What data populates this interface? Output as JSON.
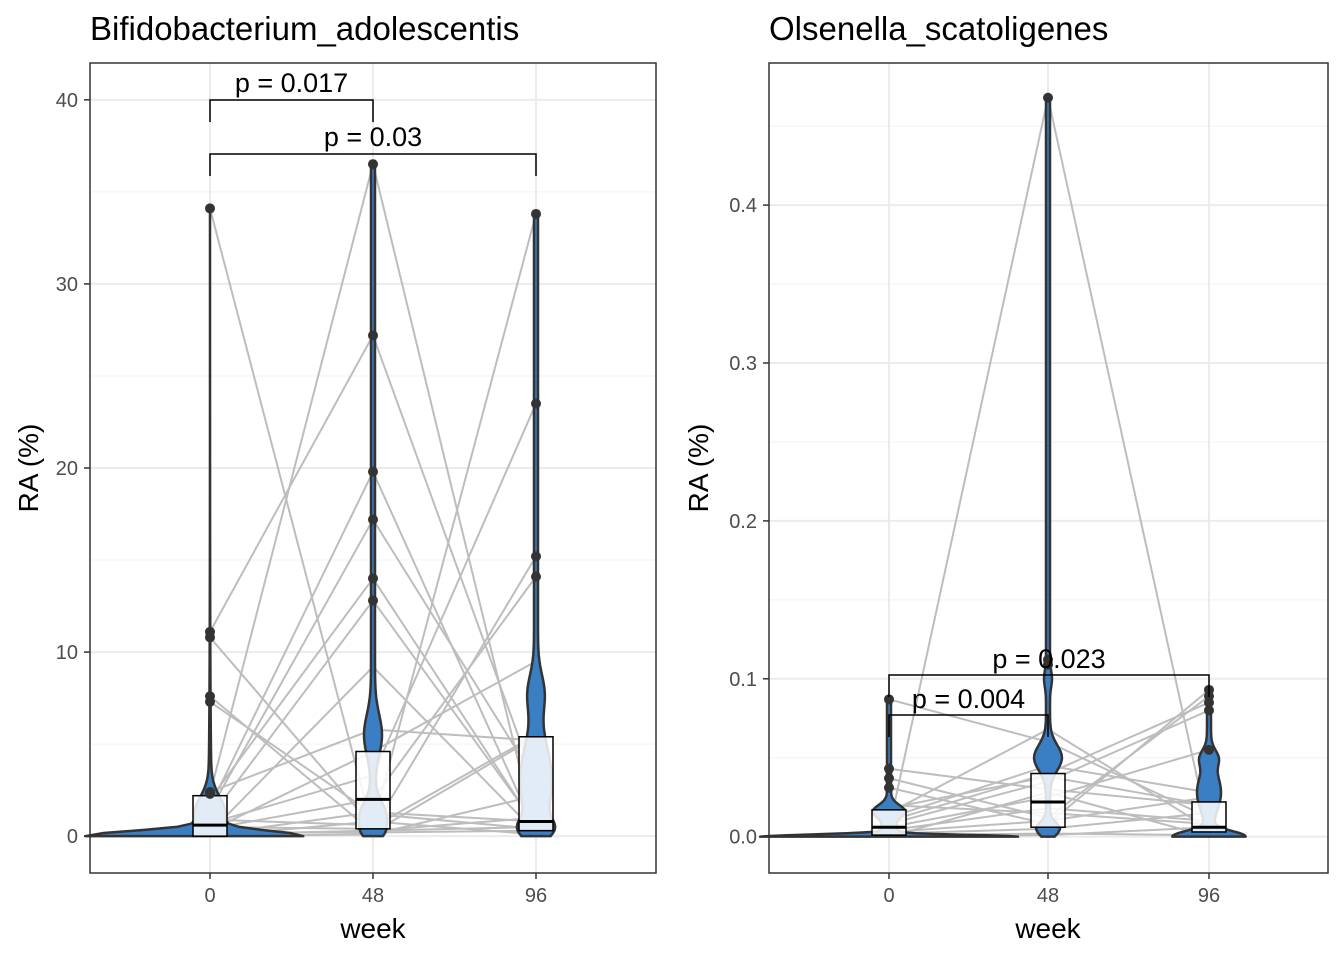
{
  "chart_data": [
    {
      "type": "violin",
      "title": "Bifidobacterium_adolescentis",
      "xlabel": "week",
      "ylabel": "RA (%)",
      "x_ticks": [
        "0",
        "48",
        "96"
      ],
      "y_ticks": [
        "0",
        "10",
        "20",
        "30",
        "40"
      ],
      "ylim": [
        -2,
        42
      ],
      "grid": true,
      "fill_color": "#3a7fc4",
      "line_color": "#bdbdbd",
      "outlier_points": {
        "0": [
          34.1,
          11.1,
          10.8,
          7.6,
          7.3,
          2.4,
          2.3
        ],
        "48": [
          36.5,
          27.2,
          19.8,
          17.2,
          14.0,
          12.8
        ],
        "96": [
          33.8,
          23.5,
          15.2,
          14.1
        ]
      },
      "boxes": {
        "0": {
          "q1": 0.0,
          "median": 0.6,
          "q3": 2.2
        },
        "48": {
          "q1": 0.4,
          "median": 2.0,
          "q3": 4.6
        },
        "96": {
          "q1": 0.3,
          "median": 0.8,
          "q3": 5.4
        }
      },
      "comparisons": [
        {
          "from": "0",
          "to": "48",
          "label": "p = 0.017"
        },
        {
          "from": "0",
          "to": "96",
          "label": "p = 0.03"
        }
      ],
      "paired_lines": [
        [
          34.1,
          0.3,
          0.5
        ],
        [
          11.1,
          27.2,
          2.8
        ],
        [
          10.8,
          0.5,
          5.5
        ],
        [
          7.6,
          0.2,
          0.3
        ],
        [
          7.3,
          1.2,
          0.4
        ],
        [
          2.4,
          5.8,
          5.2
        ],
        [
          2.3,
          36.5,
          0.1
        ],
        [
          2.0,
          14.0,
          0.5
        ],
        [
          1.6,
          19.8,
          0.2
        ],
        [
          1.4,
          17.2,
          3.0
        ],
        [
          1.0,
          12.8,
          0.6
        ],
        [
          0.9,
          0.6,
          33.8
        ],
        [
          0.7,
          3.3,
          23.5
        ],
        [
          0.5,
          0.4,
          15.2
        ],
        [
          0.4,
          2.0,
          14.1
        ],
        [
          0.3,
          4.6,
          9.5
        ],
        [
          0.2,
          0.2,
          5.4
        ],
        [
          0.1,
          1.3,
          0.8
        ],
        [
          0.0,
          0.1,
          2.2
        ],
        [
          0.0,
          0.8,
          0.1
        ],
        [
          0.1,
          0.3,
          1.0
        ],
        [
          0.2,
          9.2,
          0.2
        ]
      ]
    },
    {
      "type": "violin",
      "title": "Olsenella_scatoligenes",
      "xlabel": "week",
      "ylabel": "RA (%)",
      "x_ticks": [
        "0",
        "48",
        "96"
      ],
      "y_ticks": [
        "0.0",
        "0.1",
        "0.2",
        "0.3",
        "0.4"
      ],
      "ylim": [
        -0.023,
        0.49
      ],
      "grid": true,
      "fill_color": "#3a7fc4",
      "line_color": "#bdbdbd",
      "outlier_points": {
        "0": [
          0.087,
          0.043,
          0.037,
          0.031
        ],
        "48": [
          0.468,
          0.112,
          0.109
        ],
        "96": [
          0.093,
          0.089,
          0.085,
          0.08,
          0.055
        ]
      },
      "boxes": {
        "0": {
          "q1": 0.001,
          "median": 0.006,
          "q3": 0.017
        },
        "48": {
          "q1": 0.006,
          "median": 0.022,
          "q3": 0.04
        },
        "96": {
          "q1": 0.003,
          "median": 0.006,
          "q3": 0.022
        }
      },
      "comparisons": [
        {
          "from": "0",
          "to": "48",
          "label": "p = 0.004"
        },
        {
          "from": "0",
          "to": "96",
          "label": "p = 0.023"
        }
      ],
      "paired_lines": [
        [
          0.087,
          0.06,
          0.012
        ],
        [
          0.043,
          0.03,
          0.02
        ],
        [
          0.037,
          0.012,
          0.089
        ],
        [
          0.031,
          0.008,
          0.093
        ],
        [
          0.015,
          0.068,
          0.005
        ],
        [
          0.012,
          0.045,
          0.028
        ],
        [
          0.01,
          0.04,
          0.085
        ],
        [
          0.008,
          0.035,
          0.08
        ],
        [
          0.006,
          0.025,
          0.055
        ],
        [
          0.005,
          0.468,
          0.003
        ],
        [
          0.004,
          0.018,
          0.01
        ],
        [
          0.003,
          0.01,
          0.025
        ],
        [
          0.002,
          0.005,
          0.015
        ],
        [
          0.001,
          0.002,
          0.001
        ],
        [
          0.0,
          0.001,
          0.006
        ],
        [
          0.0,
          0.028,
          0.0
        ],
        [
          0.018,
          0.038,
          0.02
        ],
        [
          0.02,
          0.015,
          0.008
        ]
      ]
    }
  ]
}
